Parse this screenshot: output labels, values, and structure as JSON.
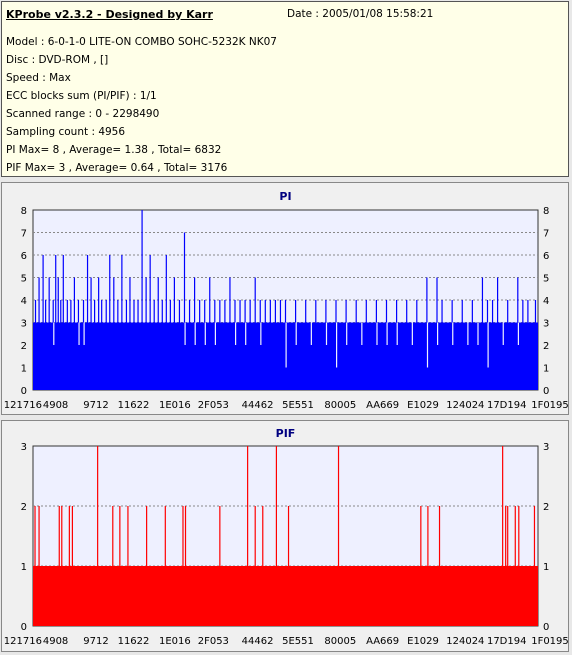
{
  "header": {
    "title": "KProbe v2.3.2 - Designed by Karr",
    "date": "Date : 2005/01/08 15:58:21",
    "lines": [
      "Model : 6-0-1-0 LITE-ON COMBO SOHC-5232K NK07",
      "Disc : DVD-ROM ,  []",
      "Speed : Max",
      "ECC blocks sum (PI/PIF) : 1/1",
      "Scanned range : 0 - 2298490",
      "Sampling count : 4956",
      "PI Max= 8 , Average= 1.38 , Total= 6832",
      "PIF Max= 3 , Average= 0.64 , Total= 3176"
    ]
  },
  "colors": {
    "pi": "#0000ff",
    "pif": "#ff0000",
    "plot_bg": "#eef0ff",
    "panel_bg": "#f0f0f0"
  },
  "chart_data": [
    {
      "type": "bar",
      "title": "PI",
      "ylim": [
        0,
        8
      ],
      "yticks": [
        0,
        1,
        2,
        3,
        4,
        5,
        6,
        7,
        8
      ],
      "xtick_labels": [
        "121716",
        "4908",
        "9712",
        "11622",
        "1E016",
        "2F053",
        "44462",
        "5E551",
        "80005",
        "AA669",
        "E1029",
        "124024",
        "17D194",
        "1F0195"
      ],
      "grid": true,
      "baseline": 3,
      "spikes": [
        {
          "x": 0.005,
          "v": 4
        },
        {
          "x": 0.012,
          "v": 5
        },
        {
          "x": 0.02,
          "v": 6
        },
        {
          "x": 0.025,
          "v": 4
        },
        {
          "x": 0.032,
          "v": 5
        },
        {
          "x": 0.04,
          "v": 4
        },
        {
          "x": 0.045,
          "v": 6
        },
        {
          "x": 0.05,
          "v": 5
        },
        {
          "x": 0.055,
          "v": 4
        },
        {
          "x": 0.06,
          "v": 6
        },
        {
          "x": 0.068,
          "v": 4
        },
        {
          "x": 0.075,
          "v": 4
        },
        {
          "x": 0.082,
          "v": 5
        },
        {
          "x": 0.09,
          "v": 4
        },
        {
          "x": 0.1,
          "v": 4
        },
        {
          "x": 0.108,
          "v": 6
        },
        {
          "x": 0.115,
          "v": 5
        },
        {
          "x": 0.122,
          "v": 4
        },
        {
          "x": 0.13,
          "v": 5
        },
        {
          "x": 0.136,
          "v": 4
        },
        {
          "x": 0.145,
          "v": 4
        },
        {
          "x": 0.152,
          "v": 6
        },
        {
          "x": 0.16,
          "v": 5
        },
        {
          "x": 0.168,
          "v": 4
        },
        {
          "x": 0.176,
          "v": 6
        },
        {
          "x": 0.185,
          "v": 4
        },
        {
          "x": 0.192,
          "v": 5
        },
        {
          "x": 0.2,
          "v": 4
        },
        {
          "x": 0.208,
          "v": 4
        },
        {
          "x": 0.216,
          "v": 8
        },
        {
          "x": 0.224,
          "v": 5
        },
        {
          "x": 0.232,
          "v": 6
        },
        {
          "x": 0.24,
          "v": 4
        },
        {
          "x": 0.248,
          "v": 5
        },
        {
          "x": 0.256,
          "v": 4
        },
        {
          "x": 0.264,
          "v": 6
        },
        {
          "x": 0.272,
          "v": 4
        },
        {
          "x": 0.28,
          "v": 5
        },
        {
          "x": 0.29,
          "v": 4
        },
        {
          "x": 0.3,
          "v": 7
        },
        {
          "x": 0.31,
          "v": 4
        },
        {
          "x": 0.32,
          "v": 5
        },
        {
          "x": 0.33,
          "v": 4
        },
        {
          "x": 0.34,
          "v": 4
        },
        {
          "x": 0.35,
          "v": 5
        },
        {
          "x": 0.36,
          "v": 4
        },
        {
          "x": 0.37,
          "v": 4
        },
        {
          "x": 0.38,
          "v": 4
        },
        {
          "x": 0.39,
          "v": 5
        },
        {
          "x": 0.4,
          "v": 4
        },
        {
          "x": 0.41,
          "v": 4
        },
        {
          "x": 0.42,
          "v": 4
        },
        {
          "x": 0.43,
          "v": 4
        },
        {
          "x": 0.44,
          "v": 5
        },
        {
          "x": 0.45,
          "v": 4
        },
        {
          "x": 0.46,
          "v": 4
        },
        {
          "x": 0.47,
          "v": 4
        },
        {
          "x": 0.48,
          "v": 4
        },
        {
          "x": 0.49,
          "v": 4
        },
        {
          "x": 0.5,
          "v": 4
        },
        {
          "x": 0.52,
          "v": 4
        },
        {
          "x": 0.54,
          "v": 4
        },
        {
          "x": 0.56,
          "v": 4
        },
        {
          "x": 0.58,
          "v": 4
        },
        {
          "x": 0.6,
          "v": 4
        },
        {
          "x": 0.62,
          "v": 4
        },
        {
          "x": 0.64,
          "v": 4
        },
        {
          "x": 0.66,
          "v": 4
        },
        {
          "x": 0.68,
          "v": 4
        },
        {
          "x": 0.7,
          "v": 4
        },
        {
          "x": 0.72,
          "v": 4
        },
        {
          "x": 0.74,
          "v": 4
        },
        {
          "x": 0.76,
          "v": 4
        },
        {
          "x": 0.78,
          "v": 5
        },
        {
          "x": 0.8,
          "v": 5
        },
        {
          "x": 0.81,
          "v": 4
        },
        {
          "x": 0.83,
          "v": 4
        },
        {
          "x": 0.85,
          "v": 4
        },
        {
          "x": 0.87,
          "v": 4
        },
        {
          "x": 0.89,
          "v": 5
        },
        {
          "x": 0.9,
          "v": 4
        },
        {
          "x": 0.91,
          "v": 4
        },
        {
          "x": 0.92,
          "v": 5
        },
        {
          "x": 0.94,
          "v": 4
        },
        {
          "x": 0.96,
          "v": 5
        },
        {
          "x": 0.97,
          "v": 4
        },
        {
          "x": 0.98,
          "v": 4
        },
        {
          "x": 0.995,
          "v": 4
        }
      ],
      "dips": [
        {
          "x": 0.04,
          "v": 2
        },
        {
          "x": 0.09,
          "v": 2
        },
        {
          "x": 0.1,
          "v": 2
        },
        {
          "x": 0.3,
          "v": 2
        },
        {
          "x": 0.32,
          "v": 2
        },
        {
          "x": 0.34,
          "v": 2
        },
        {
          "x": 0.36,
          "v": 2
        },
        {
          "x": 0.4,
          "v": 2
        },
        {
          "x": 0.42,
          "v": 2
        },
        {
          "x": 0.45,
          "v": 2
        },
        {
          "x": 0.5,
          "v": 1
        },
        {
          "x": 0.52,
          "v": 2
        },
        {
          "x": 0.55,
          "v": 2
        },
        {
          "x": 0.58,
          "v": 2
        },
        {
          "x": 0.6,
          "v": 1
        },
        {
          "x": 0.62,
          "v": 2
        },
        {
          "x": 0.65,
          "v": 2
        },
        {
          "x": 0.68,
          "v": 2
        },
        {
          "x": 0.7,
          "v": 2
        },
        {
          "x": 0.72,
          "v": 2
        },
        {
          "x": 0.75,
          "v": 2
        },
        {
          "x": 0.78,
          "v": 1
        },
        {
          "x": 0.8,
          "v": 2
        },
        {
          "x": 0.83,
          "v": 2
        },
        {
          "x": 0.86,
          "v": 2
        },
        {
          "x": 0.88,
          "v": 2
        },
        {
          "x": 0.9,
          "v": 1
        },
        {
          "x": 0.93,
          "v": 2
        },
        {
          "x": 0.96,
          "v": 2
        }
      ]
    },
    {
      "type": "bar",
      "title": "PIF",
      "ylim": [
        0,
        3
      ],
      "yticks": [
        0,
        1,
        2,
        3
      ],
      "xtick_labels": [
        "121716",
        "4908",
        "9712",
        "11622",
        "1E016",
        "2F053",
        "44462",
        "5E551",
        "80005",
        "AA669",
        "E1029",
        "124024",
        "17D194",
        "1F0195"
      ],
      "grid": true,
      "baseline": 1,
      "spikes": [
        {
          "x": 0.004,
          "v": 2
        },
        {
          "x": 0.012,
          "v": 2
        },
        {
          "x": 0.052,
          "v": 2
        },
        {
          "x": 0.057,
          "v": 2
        },
        {
          "x": 0.072,
          "v": 2
        },
        {
          "x": 0.078,
          "v": 2
        },
        {
          "x": 0.128,
          "v": 3
        },
        {
          "x": 0.158,
          "v": 2
        },
        {
          "x": 0.172,
          "v": 2
        },
        {
          "x": 0.188,
          "v": 2
        },
        {
          "x": 0.225,
          "v": 2
        },
        {
          "x": 0.262,
          "v": 2
        },
        {
          "x": 0.297,
          "v": 2
        },
        {
          "x": 0.302,
          "v": 2
        },
        {
          "x": 0.37,
          "v": 2
        },
        {
          "x": 0.425,
          "v": 3
        },
        {
          "x": 0.44,
          "v": 2
        },
        {
          "x": 0.455,
          "v": 2
        },
        {
          "x": 0.482,
          "v": 3
        },
        {
          "x": 0.506,
          "v": 2
        },
        {
          "x": 0.605,
          "v": 3
        },
        {
          "x": 0.768,
          "v": 2
        },
        {
          "x": 0.782,
          "v": 2
        },
        {
          "x": 0.805,
          "v": 2
        },
        {
          "x": 0.93,
          "v": 3
        },
        {
          "x": 0.936,
          "v": 2
        },
        {
          "x": 0.94,
          "v": 2
        },
        {
          "x": 0.955,
          "v": 2
        },
        {
          "x": 0.962,
          "v": 2
        },
        {
          "x": 0.993,
          "v": 2
        }
      ],
      "dips": []
    }
  ]
}
